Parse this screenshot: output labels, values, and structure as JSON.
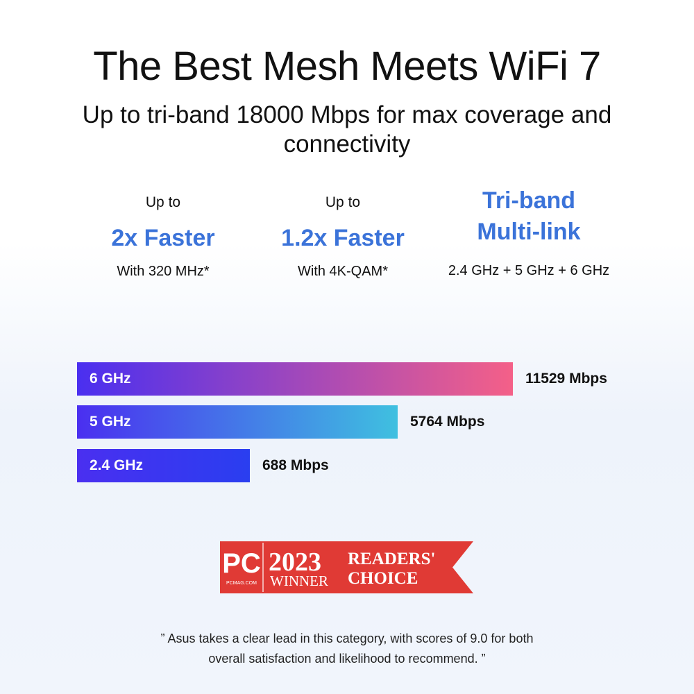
{
  "header": {
    "title": "The Best Mesh Meets WiFi 7",
    "subtitle": "Up to tri-band 18000 Mbps for max coverage and connectivity"
  },
  "features": [
    {
      "pre": "Up to",
      "big": "2x Faster",
      "sub": "With 320 MHz*"
    },
    {
      "pre": "Up to",
      "big": "1.2x Faster",
      "sub": "With 4K-QAM*"
    },
    {
      "big_line1": "Tri-band",
      "big_line2": "Multi-link",
      "sub": "2.4 GHz + 5 GHz + 6 GHz"
    }
  ],
  "chart_data": {
    "type": "bar",
    "orientation": "horizontal",
    "categories": [
      "6 GHz",
      "5 GHz",
      "2.4 GHz"
    ],
    "values": [
      11529,
      5764,
      688
    ],
    "value_labels": [
      "11529 Mbps",
      "5764 Mbps",
      "688 Mbps"
    ],
    "unit": "Mbps",
    "colors": [
      [
        "#4a2ff0",
        "#f46088"
      ],
      [
        "#4a2ff0",
        "#3fc0e0"
      ],
      [
        "#4a2ff0",
        "#2a3ef0"
      ]
    ]
  },
  "badge": {
    "logo": "PC",
    "site": "PCMAG.COM",
    "year": "2023",
    "winner": "WINNER",
    "line1": "READERS'",
    "line2": "CHOICE",
    "color": "#e03a35"
  },
  "quote": {
    "line1": "” Asus takes a clear lead in this category, with scores of 9.0 for both",
    "line2": "overall satisfaction and likelihood to recommend. ”"
  }
}
